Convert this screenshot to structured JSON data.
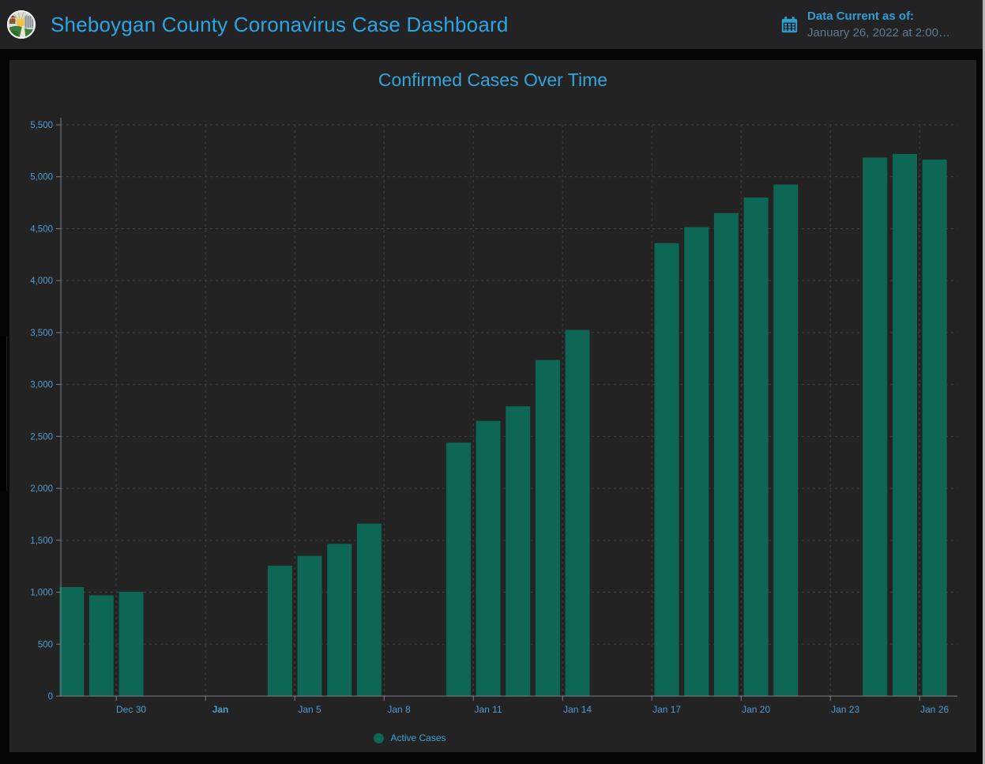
{
  "header": {
    "title": "Sheboygan County Coronavirus Case Dashboard",
    "logo_name": "sheboygan-county-seal",
    "data_current_label": "Data Current as of:",
    "data_current_value": "January 26, 2022 at 2:00…"
  },
  "colors": {
    "accent_blue": "#2CA6E0",
    "chart_title_blue": "#33A6DE",
    "tick_label_blue": "#4E9CD2",
    "muted_date_blue": "#5C7A8E",
    "bar_teal": "#0E6654",
    "grid_line": "#3F3F45",
    "axis_line": "#7E7E84",
    "header_bg": "#232326",
    "panel_bg": "#232323",
    "page_bg": "#060607"
  },
  "chart_data": {
    "type": "bar",
    "title": "Confirmed Cases Over Time",
    "xlabel": "",
    "ylabel": "",
    "ylim": [
      0,
      5500
    ],
    "grid": true,
    "legend_position": "bottom",
    "legend": {
      "label": "Active Cases"
    },
    "x": [
      "Dec 28",
      "Dec 29",
      "Dec 30",
      "Jan 4",
      "Jan 5",
      "Jan 6",
      "Jan 7",
      "Jan 10",
      "Jan 11",
      "Jan 12",
      "Jan 13",
      "Jan 14",
      "Jan 17",
      "Jan 18",
      "Jan 19",
      "Jan 20",
      "Jan 21",
      "Jan 24",
      "Jan 25",
      "Jan 26"
    ],
    "day_offsets": [
      0,
      1,
      2,
      7,
      8,
      9,
      10,
      13,
      14,
      15,
      16,
      17,
      20,
      21,
      22,
      23,
      24,
      27,
      28,
      29
    ],
    "values": [
      1050,
      970,
      1005,
      1255,
      1350,
      1465,
      1660,
      2440,
      2650,
      2790,
      3235,
      3525,
      4360,
      4515,
      4650,
      4800,
      4925,
      5185,
      5220,
      5165
    ],
    "series": [
      {
        "name": "Active Cases",
        "values": [
          1050,
          970,
          1005,
          1255,
          1350,
          1465,
          1660,
          2440,
          2650,
          2790,
          3235,
          3525,
          4360,
          4515,
          4650,
          4800,
          4925,
          5185,
          5220,
          5165
        ]
      }
    ],
    "y_ticks": [
      0,
      500,
      1000,
      1500,
      2000,
      2500,
      3000,
      3500,
      4000,
      4500,
      5000,
      5500
    ],
    "y_tick_labels": [
      "0",
      "500",
      "1,000",
      "1,500",
      "2,000",
      "2,500",
      "3,000",
      "3,500",
      "4,000",
      "4,500",
      "5,000",
      "5,500"
    ],
    "x_ticks": [
      {
        "label": "Dec 30",
        "offset": 2,
        "bold": false
      },
      {
        "label": "Jan",
        "offset": 5,
        "bold": true
      },
      {
        "label": "Jan 5",
        "offset": 8,
        "bold": false
      },
      {
        "label": "Jan 8",
        "offset": 11,
        "bold": false
      },
      {
        "label": "Jan 11",
        "offset": 14,
        "bold": false
      },
      {
        "label": "Jan 14",
        "offset": 17,
        "bold": false
      },
      {
        "label": "Jan 17",
        "offset": 20,
        "bold": false
      },
      {
        "label": "Jan 20",
        "offset": 23,
        "bold": false
      },
      {
        "label": "Jan 23",
        "offset": 26,
        "bold": false
      },
      {
        "label": "Jan 26",
        "offset": 29,
        "bold": false
      }
    ]
  }
}
